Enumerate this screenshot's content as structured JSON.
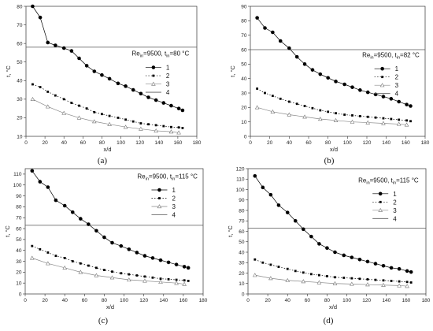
{
  "chart_data": [
    {
      "type": "line",
      "panel_label": "(a)",
      "annotation": "Re = 9500, t = 80 °C",
      "annotation_sub": [
        "in",
        "in"
      ],
      "xlabel": "x/d",
      "ylabel": "t, °C",
      "xlim": [
        0,
        180
      ],
      "ylim": [
        10,
        80
      ],
      "xticks": [
        0,
        20,
        40,
        60,
        80,
        100,
        120,
        140,
        160,
        180
      ],
      "yticks": [
        10,
        20,
        30,
        40,
        50,
        60,
        70,
        80
      ],
      "reference_line": 58,
      "legend": [
        "1",
        "2",
        "3",
        "4"
      ],
      "series": [
        {
          "name": "1",
          "x": [
            7,
            15,
            23,
            31,
            40,
            48,
            56,
            64,
            72,
            80,
            88,
            97,
            105,
            113,
            121,
            129,
            137,
            145,
            153,
            161,
            165
          ],
          "y": [
            80,
            74,
            60.5,
            59,
            57.5,
            56,
            52,
            48,
            45,
            43,
            41,
            38.5,
            37,
            35,
            33,
            31,
            29.5,
            28,
            26.5,
            25,
            24
          ]
        },
        {
          "name": "2",
          "x": [
            7,
            15,
            23,
            31,
            40,
            48,
            56,
            64,
            72,
            80,
            88,
            97,
            105,
            113,
            121,
            129,
            137,
            145,
            153,
            161,
            165
          ],
          "y": [
            38,
            36.5,
            34,
            32,
            30,
            28,
            26.5,
            25,
            23,
            22,
            21,
            20,
            19,
            18,
            17,
            16.5,
            16,
            15.5,
            15,
            14.8,
            14.5
          ]
        },
        {
          "name": "3",
          "x": [
            7,
            23,
            40,
            56,
            72,
            88,
            105,
            121,
            137,
            153,
            161
          ],
          "y": [
            30,
            26,
            22.5,
            20,
            18,
            16.5,
            15,
            14,
            13,
            12.5,
            12
          ]
        }
      ]
    },
    {
      "type": "line",
      "panel_label": "(b)",
      "annotation": "Re = 9500, t = 82 °C",
      "annotation_sub": [
        "in",
        "in"
      ],
      "xlabel": "x/d",
      "ylabel": "t, °C",
      "xlim": [
        0,
        180
      ],
      "ylim": [
        0,
        90
      ],
      "xticks": [
        0,
        20,
        40,
        60,
        80,
        100,
        120,
        140,
        160,
        180
      ],
      "yticks": [
        0,
        10,
        20,
        30,
        40,
        50,
        60,
        70,
        80,
        90
      ],
      "reference_line": 60,
      "legend": [
        "1",
        "2",
        "3",
        "4"
      ],
      "series": [
        {
          "name": "1",
          "x": [
            7,
            15,
            23,
            31,
            40,
            48,
            56,
            64,
            72,
            80,
            88,
            97,
            105,
            113,
            121,
            129,
            137,
            145,
            153,
            161,
            165
          ],
          "y": [
            82,
            75,
            72,
            66,
            61,
            55,
            50,
            46,
            43,
            40.5,
            38,
            36,
            34,
            32,
            30.5,
            29,
            27.5,
            26,
            24,
            22,
            21
          ]
        },
        {
          "name": "2",
          "x": [
            7,
            15,
            23,
            31,
            40,
            48,
            56,
            64,
            72,
            80,
            88,
            97,
            105,
            113,
            121,
            129,
            137,
            145,
            153,
            161,
            165
          ],
          "y": [
            33,
            30,
            28,
            26,
            24,
            22.5,
            21,
            19.5,
            18,
            17,
            16,
            15,
            14.5,
            14,
            13.5,
            13,
            12.5,
            12,
            11.5,
            11,
            10.5
          ]
        },
        {
          "name": "3",
          "x": [
            7,
            23,
            40,
            56,
            72,
            88,
            105,
            121,
            137,
            153,
            161
          ],
          "y": [
            20,
            17,
            15,
            13.5,
            12,
            11,
            10,
            9.5,
            9,
            8.5,
            8
          ]
        }
      ]
    },
    {
      "type": "line",
      "panel_label": "(c)",
      "annotation": "Re = 9500, t = 115 °C",
      "annotation_sub": [
        "in",
        "in"
      ],
      "xlabel": "x/d",
      "ylabel": "t, °C",
      "xlim": [
        0,
        180
      ],
      "ylim": [
        0,
        115
      ],
      "xticks": [
        0,
        20,
        40,
        60,
        80,
        100,
        120,
        140,
        160,
        180
      ],
      "yticks": [
        0,
        10,
        20,
        30,
        40,
        50,
        60,
        70,
        80,
        90,
        100,
        110
      ],
      "reference_line": 63,
      "legend": [
        "1",
        "2",
        "3",
        "4"
      ],
      "series": [
        {
          "name": "1",
          "x": [
            7,
            15,
            23,
            31,
            40,
            48,
            56,
            64,
            72,
            80,
            88,
            97,
            105,
            113,
            121,
            129,
            137,
            145,
            153,
            161,
            165
          ],
          "y": [
            113,
            103,
            98,
            86,
            81,
            75,
            69,
            64,
            58,
            52,
            47,
            44,
            41,
            38,
            35,
            33,
            31,
            29,
            27,
            25,
            24
          ]
        },
        {
          "name": "2",
          "x": [
            7,
            15,
            23,
            31,
            40,
            48,
            56,
            64,
            72,
            80,
            88,
            97,
            105,
            113,
            121,
            129,
            137,
            145,
            153,
            161,
            165
          ],
          "y": [
            44,
            41,
            38,
            35,
            33,
            30,
            28,
            26,
            24,
            22,
            20.5,
            19,
            18,
            17,
            16,
            15,
            14,
            13.5,
            13,
            12.5,
            12
          ]
        },
        {
          "name": "3",
          "x": [
            7,
            23,
            40,
            56,
            72,
            88,
            105,
            121,
            137,
            153,
            161
          ],
          "y": [
            33,
            28,
            24,
            20,
            17,
            15,
            13,
            12,
            11,
            10,
            9
          ]
        }
      ]
    },
    {
      "type": "line",
      "panel_label": "(d)",
      "annotation": "Re = 9500, t = 115 °C",
      "annotation_sub": [
        "in",
        "in"
      ],
      "xlabel": "x/d",
      "ylabel": "t, °C",
      "xlim": [
        0,
        180
      ],
      "ylim": [
        0,
        120
      ],
      "xticks": [
        0,
        20,
        40,
        60,
        80,
        100,
        120,
        140,
        160,
        180
      ],
      "yticks": [
        0,
        10,
        20,
        30,
        40,
        50,
        60,
        70,
        80,
        90,
        100,
        110,
        120
      ],
      "reference_line": 63,
      "legend": [
        "1",
        "2",
        "3",
        "4"
      ],
      "series": [
        {
          "name": "1",
          "x": [
            7,
            15,
            23,
            31,
            40,
            48,
            56,
            64,
            72,
            80,
            88,
            97,
            105,
            113,
            121,
            129,
            137,
            145,
            153,
            161,
            165
          ],
          "y": [
            113,
            102,
            95,
            85,
            78,
            70,
            62,
            55,
            48,
            44,
            40,
            37,
            35,
            33,
            31,
            29,
            27,
            25,
            24,
            22,
            21
          ]
        },
        {
          "name": "2",
          "x": [
            7,
            15,
            23,
            31,
            40,
            48,
            56,
            64,
            72,
            80,
            88,
            97,
            105,
            113,
            121,
            129,
            137,
            145,
            153,
            161,
            165
          ],
          "y": [
            33,
            30,
            28,
            26,
            24,
            22,
            20.5,
            19,
            18,
            17,
            16,
            15.5,
            15,
            14.5,
            14,
            13.5,
            13,
            12.5,
            12,
            11.5,
            11
          ]
        },
        {
          "name": "3",
          "x": [
            7,
            23,
            40,
            56,
            72,
            88,
            105,
            121,
            137,
            153,
            161
          ],
          "y": [
            18,
            15,
            13,
            12,
            11,
            10,
            9.5,
            9,
            8.5,
            8,
            7.5
          ]
        }
      ]
    }
  ]
}
